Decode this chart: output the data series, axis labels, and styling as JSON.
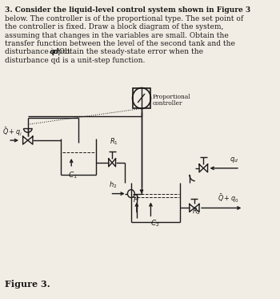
{
  "bg_color": "#f2ede4",
  "line_color": "#1a1a1a",
  "figure_label": "Figure 3.",
  "text_lines": [
    [
      "3. Consider the liquid-level control system shown in Figure 3",
      true
    ],
    [
      "below. The controller is of the proportional type. The set point of",
      false
    ],
    [
      "the controller is fixed. Draw a block diagram of the system,",
      false
    ],
    [
      "assuming that changes in the variables are small. Obtain the",
      false
    ],
    [
      "transfer function between the level of the second tank and the",
      false
    ],
    [
      "disturbance input qd Obtain the steady-state error when the",
      false
    ],
    [
      "disturbance qd is a unit-step function.",
      false
    ]
  ]
}
